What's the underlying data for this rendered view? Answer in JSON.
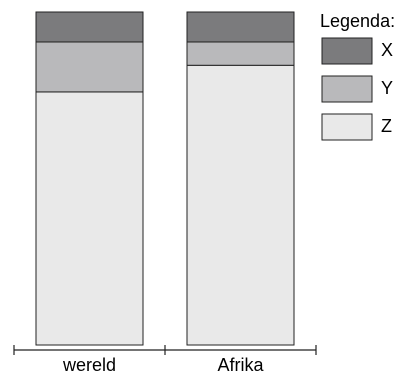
{
  "chart_data": {
    "type": "stacked-bar",
    "legend_title": "Legenda:",
    "categories": [
      "wereld",
      "Afrika"
    ],
    "series": [
      {
        "name": "X",
        "color": "#7b7b7d",
        "values": [
          9,
          9
        ]
      },
      {
        "name": "Y",
        "color": "#b9b9bb",
        "values": [
          15,
          7
        ]
      },
      {
        "name": "Z",
        "color": "#e9e9e9",
        "values": [
          76,
          84
        ]
      }
    ],
    "ylim": [
      0,
      100
    ],
    "legend": "top-right"
  }
}
